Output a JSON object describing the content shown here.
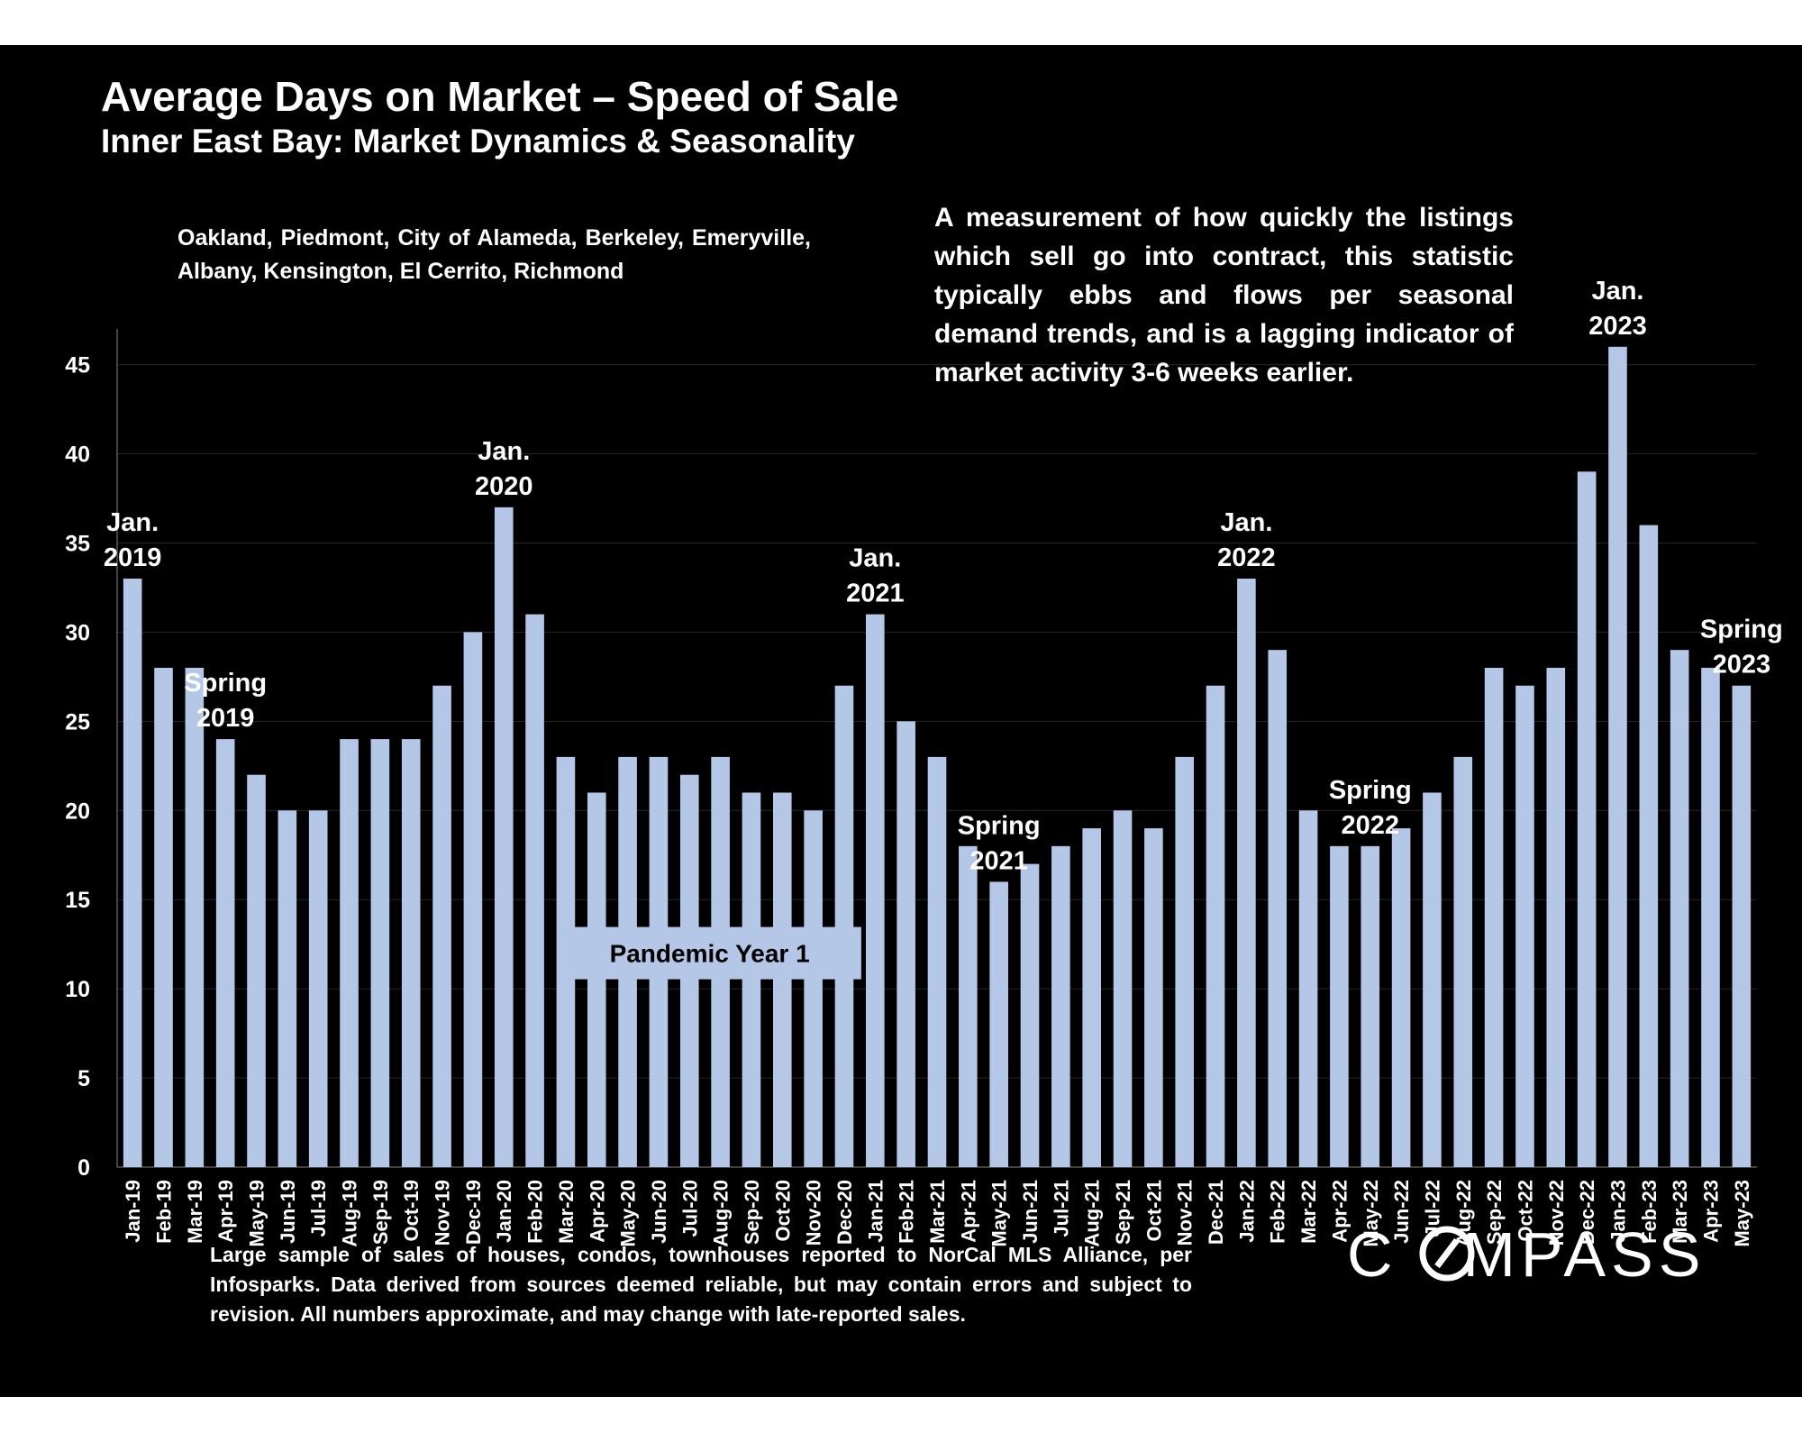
{
  "title": "Average Days on Market – Speed of Sale",
  "subtitle": "Inner East Bay: Market Dynamics & Seasonality",
  "areas_text": "Oakland, Piedmont, City of Alameda, Berkeley, Emeryville, Albany, Kensington, El Cerrito, Richmond",
  "description": "A measurement of how quickly the listings which sell go into contract, this statistic typically ebbs and flows per seasonal demand trends, and is a lagging indicator of market activity 3-6 weeks earlier.",
  "footer": "Large sample of sales of houses, condos, townhouses reported to NorCal MLS Alliance, per Infosparks. Data derived from sources deemed reliable, but may contain errors and subject to revision. All numbers approximate, and may change with late-reported sales.",
  "logo_text": "COMPASS",
  "colors": {
    "background": "#000000",
    "bar": "#b4c7e7",
    "text": "#ffffff",
    "grid": "#262626",
    "pandemic_box": "#b4c7e7"
  },
  "chart_data": {
    "type": "bar",
    "categories": [
      "Jan-19",
      "Feb-19",
      "Mar-19",
      "Apr-19",
      "May-19",
      "Jun-19",
      "Jul-19",
      "Aug-19",
      "Sep-19",
      "Oct-19",
      "Nov-19",
      "Dec-19",
      "Jan-20",
      "Feb-20",
      "Mar-20",
      "Apr-20",
      "May-20",
      "Jun-20",
      "Jul-20",
      "Aug-20",
      "Sep-20",
      "Oct-20",
      "Nov-20",
      "Dec-20",
      "Jan-21",
      "Feb-21",
      "Mar-21",
      "Apr-21",
      "May-21",
      "Jun-21",
      "Jul-21",
      "Aug-21",
      "Sep-21",
      "Oct-21",
      "Nov-21",
      "Dec-21",
      "Jan-22",
      "Feb-22",
      "Mar-22",
      "Apr-22",
      "May-22",
      "Jun-22",
      "Jul-22",
      "Aug-22",
      "Sep-22",
      "Oct-22",
      "Nov-22",
      "Dec-22",
      "Jan-23",
      "Feb-23",
      "Mar-23",
      "Apr-23",
      "May-23"
    ],
    "values": [
      33,
      28,
      28,
      24,
      22,
      20,
      20,
      24,
      24,
      24,
      27,
      30,
      37,
      31,
      23,
      21,
      23,
      23,
      22,
      23,
      21,
      21,
      20,
      27,
      31,
      25,
      23,
      18,
      16,
      17,
      18,
      19,
      20,
      19,
      23,
      27,
      33,
      29,
      20,
      18,
      18,
      19,
      21,
      23,
      28,
      27,
      28,
      39,
      46,
      36,
      29,
      28,
      27
    ],
    "ylim": [
      0,
      47
    ],
    "yticks": [
      0,
      5,
      10,
      15,
      20,
      25,
      30,
      35,
      40,
      45
    ],
    "grid": true,
    "annotations": [
      {
        "category": "Jan-19",
        "lines": [
          "Jan.",
          "2019"
        ]
      },
      {
        "category": "Apr-19",
        "lines": [
          "Spring",
          "2019"
        ]
      },
      {
        "category": "Jan-20",
        "lines": [
          "Jan.",
          "2020"
        ]
      },
      {
        "category": "Jan-21",
        "lines": [
          "Jan.",
          "2021"
        ]
      },
      {
        "category": "May-21",
        "lines": [
          "Spring",
          "2021"
        ]
      },
      {
        "category": "Jan-22",
        "lines": [
          "Jan.",
          "2022"
        ]
      },
      {
        "category": "May-22",
        "lines": [
          "Spring",
          "2022"
        ]
      },
      {
        "category": "Jan-23",
        "lines": [
          "Jan.",
          "2023"
        ]
      },
      {
        "category": "May-23",
        "lines": [
          "Spring",
          "2023"
        ]
      }
    ],
    "callout": {
      "label": "Pandemic Year 1",
      "from": "Mar-20",
      "to": "Dec-20",
      "value": 12
    }
  }
}
